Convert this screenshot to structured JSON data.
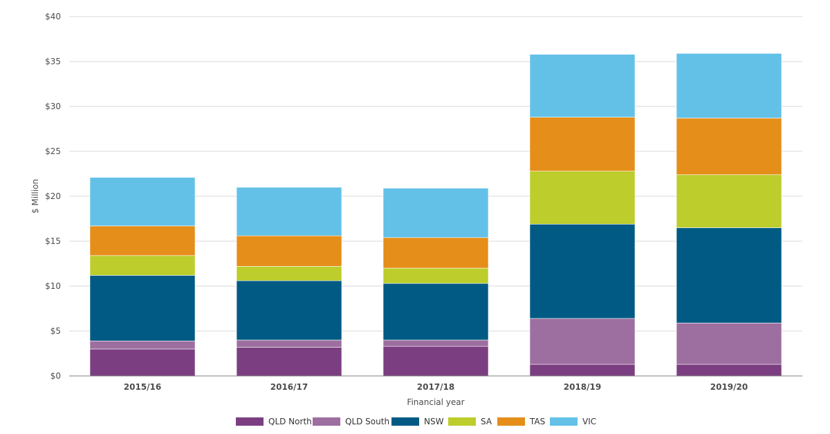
{
  "chart_data": {
    "type": "bar",
    "stacked": true,
    "title": "",
    "xlabel": "Financial year",
    "ylabel": "$ Million",
    "ylim": [
      0,
      40
    ],
    "yticks": [
      0,
      5,
      10,
      15,
      20,
      25,
      30,
      35,
      40
    ],
    "ytick_labels": [
      "$0",
      "$5",
      "$10",
      "$15",
      "$20",
      "$25",
      "$30",
      "$35",
      "$40"
    ],
    "grid": true,
    "legend_position": "bottom",
    "categories": [
      "2015/16",
      "2016/17",
      "2017/18",
      "2018/19",
      "2019/20"
    ],
    "series": [
      {
        "name": "QLD North",
        "color": "#7b3f81",
        "values": [
          3.0,
          3.2,
          3.3,
          1.3,
          1.3
        ]
      },
      {
        "name": "QLD South",
        "color": "#9d6fa0",
        "values": [
          0.9,
          0.8,
          0.7,
          5.1,
          4.6
        ]
      },
      {
        "name": "NSW",
        "color": "#005a84",
        "values": [
          7.3,
          6.6,
          6.3,
          10.5,
          10.6
        ]
      },
      {
        "name": "SA",
        "color": "#bccd2c",
        "values": [
          2.2,
          1.6,
          1.7,
          5.9,
          5.9
        ]
      },
      {
        "name": "TAS",
        "color": "#e58e1a",
        "values": [
          3.3,
          3.4,
          3.4,
          6.0,
          6.3
        ]
      },
      {
        "name": "VIC",
        "color": "#63c1e8",
        "values": [
          5.4,
          5.4,
          5.5,
          7.0,
          7.2
        ]
      }
    ]
  }
}
